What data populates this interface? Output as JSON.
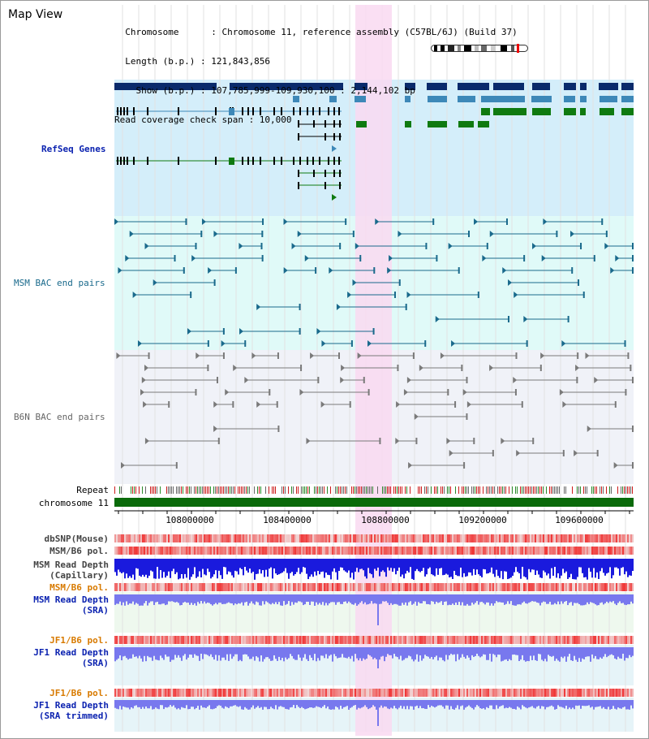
{
  "header": {
    "view_title": "Map View",
    "info_lines": [
      "  Chromosome      : Chromosome 11, reference assembly (C57BL/6J) (Build 37)",
      "  Length (b.p.) : 121,843,856",
      "    Show (b.p.) : 107,785,999-109,930,100 : 2,144,102 bp",
      "Read coverage check span : 10,000"
    ]
  },
  "tracks": {
    "refseq": "RefSeq Genes",
    "msm_bac": "MSM BAC end pairs",
    "b6n_bac": "B6N BAC end pairs",
    "repeat": "Repeat",
    "chromosome": "chromosome 11",
    "dbsnp": "dbSNP(Mouse)",
    "msm_b6_pol_1": "MSM/B6 pol.",
    "msm_read_depth_cap_1": "MSM Read Depth",
    "msm_read_depth_cap_2": "(Capillary)",
    "msm_b6_pol_2": "MSM/B6 pol.",
    "msm_read_depth_sra_1": "MSM Read Depth",
    "msm_read_depth_sra_2": "(SRA)",
    "jf1_b6_pol_1": "JF1/B6 pol.",
    "jf1_read_depth_sra_1": "JF1 Read Depth",
    "jf1_read_depth_sra_2": "(SRA)",
    "jf1_b6_pol_2": "JF1/B6 pol.",
    "jf1_read_depth_trim_1": "JF1 Read Depth",
    "jf1_read_depth_trim_2": "(SRA trimmed)"
  },
  "axis": {
    "ticks": [
      "108000000",
      "108400000",
      "108800000",
      "109200000",
      "109600000"
    ]
  },
  "colors": {
    "refseq_bg": "#d4eefa",
    "msm_bg": "#e0faf8",
    "b6n_bg": "#f0f2f8",
    "highlight": "#f9d9f1",
    "gene_navy": "#0a2a6b",
    "gene_steel": "#3d88b8",
    "gene_green": "#0f7a10",
    "msm_bac": "#1a6a8c",
    "b6n_bac": "#7a7a7a",
    "chrom_bar": "#0a6a0a",
    "depth_blue": "#1a1add",
    "depth_lavender": "#7878ee",
    "label_orange": "#d87a00",
    "label_blue": "#0b22b0"
  }
}
